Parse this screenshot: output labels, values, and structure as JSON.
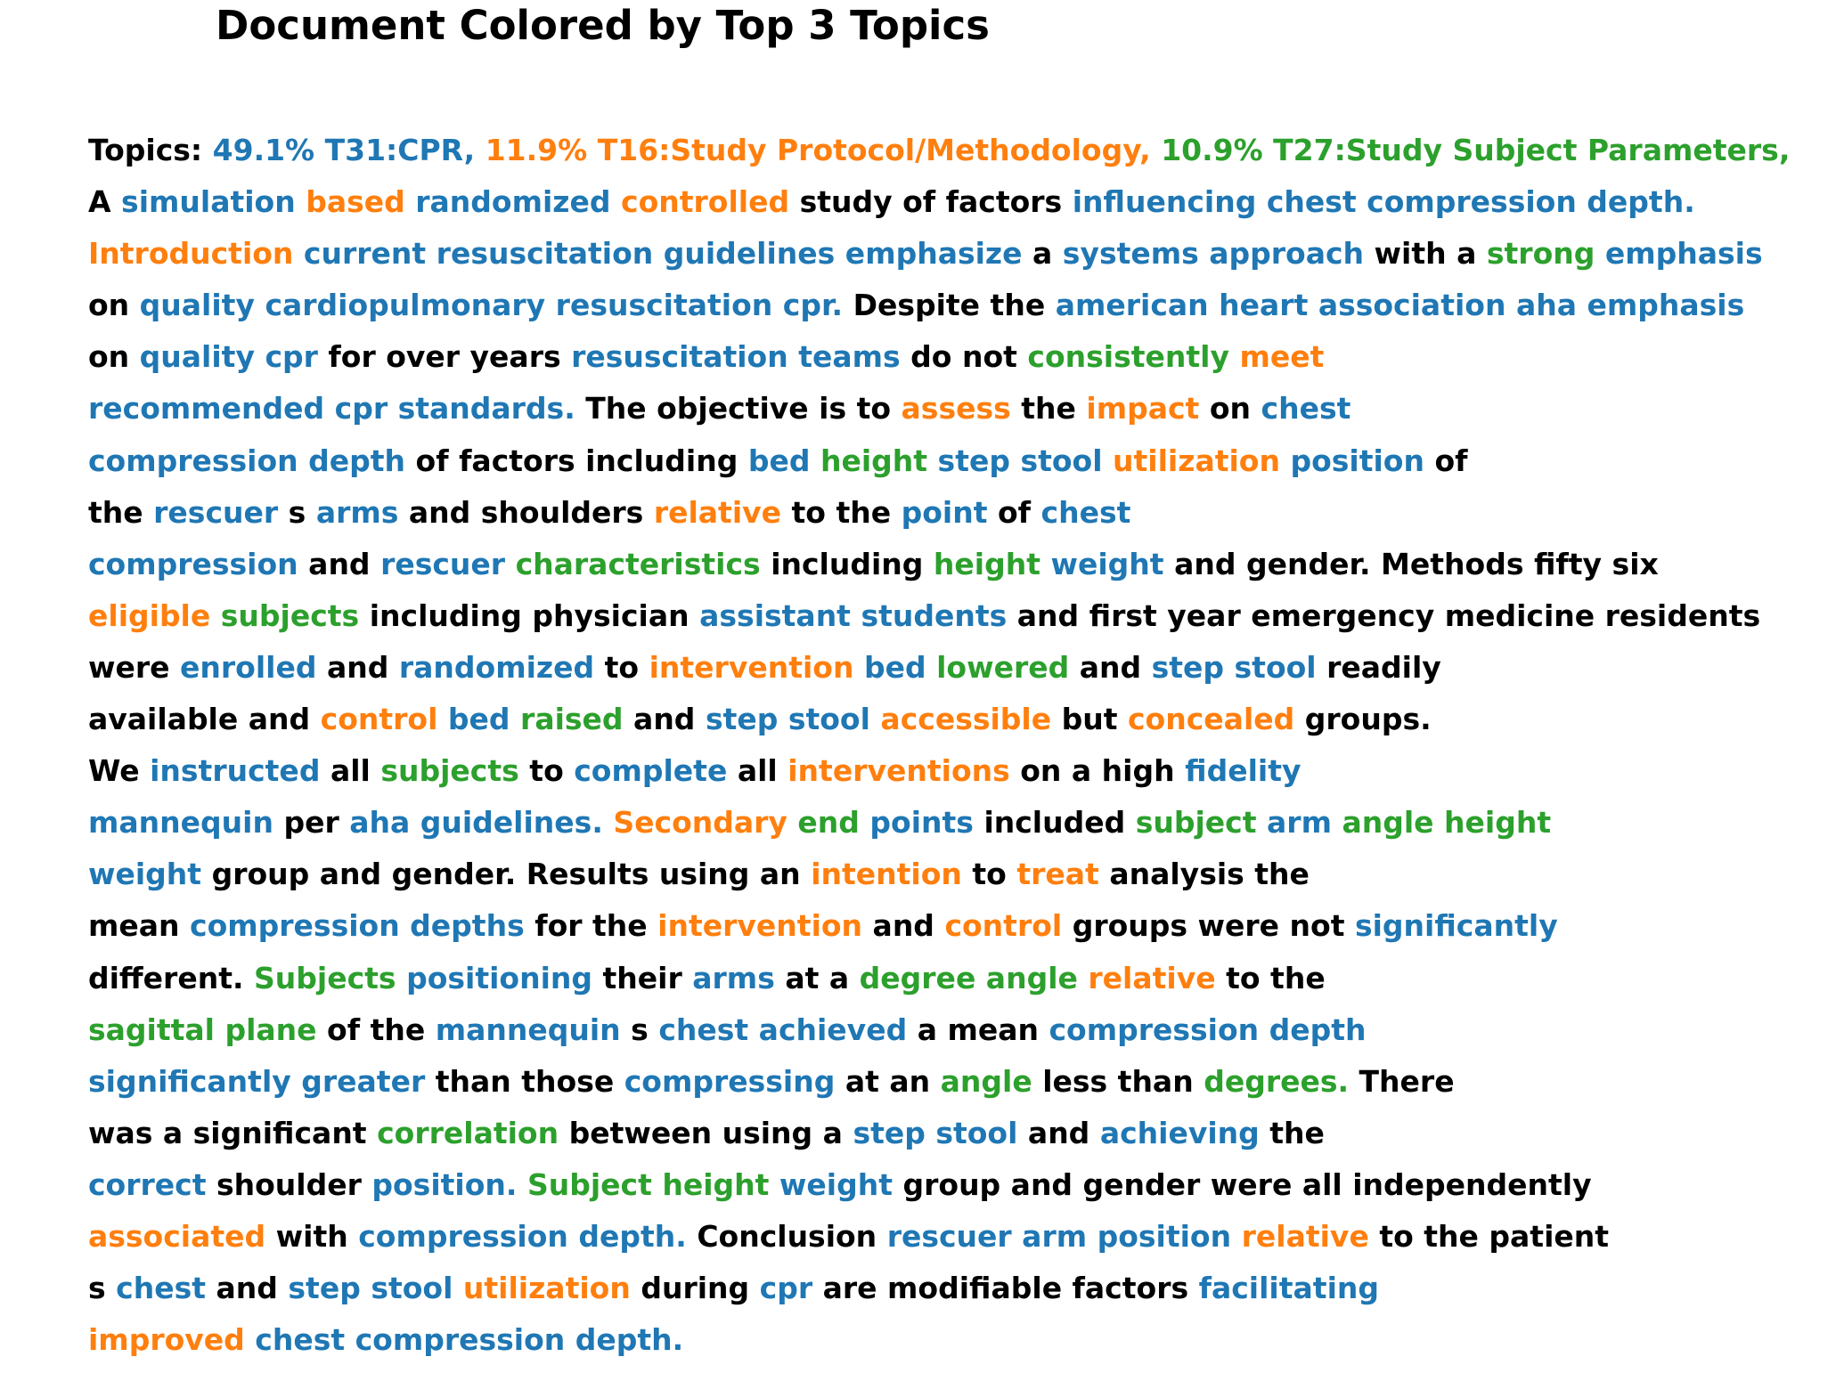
{
  "chart_data": {
    "type": "table",
    "title": "Document Colored by Top 3 Topics",
    "colors": {
      "T31": "#1f77b4",
      "T16": "#ff7f0e",
      "T27": "#2ca02c",
      "none": "#000000"
    },
    "topics": [
      {
        "id": "T31",
        "label": "49.1% T31:CPR,",
        "share_pct": 49.1
      },
      {
        "id": "T16",
        "label": "11.9% T16:Study Protocol/Methodology,",
        "share_pct": 11.9
      },
      {
        "id": "T27",
        "label": "10.9% T27:Study Subject Parameters,",
        "share_pct": 10.9
      }
    ],
    "lines": [
      [
        [
          "Topics:",
          ""
        ],
        [
          "49.1% T31:CPR,",
          "T31"
        ],
        [
          "11.9% T16:Study Protocol/Methodology,",
          "T16"
        ],
        [
          "10.9% T27:Study Subject Parameters,",
          "T27"
        ]
      ],
      [
        [
          "A",
          ""
        ],
        [
          "simulation",
          "T31"
        ],
        [
          "based",
          "T16"
        ],
        [
          "randomized",
          "T31"
        ],
        [
          "controlled",
          "T16"
        ],
        [
          "study of factors",
          ""
        ],
        [
          "influencing chest compression depth.",
          "T31"
        ]
      ],
      [
        [
          "Introduction",
          "T16"
        ],
        [
          "current resuscitation guidelines emphasize",
          "T31"
        ],
        [
          "a",
          ""
        ],
        [
          "systems approach",
          "T31"
        ],
        [
          "with a",
          ""
        ],
        [
          "strong",
          "T27"
        ],
        [
          "emphasis",
          "T31"
        ]
      ],
      [
        [
          "on",
          ""
        ],
        [
          "quality cardiopulmonary resuscitation cpr.",
          "T31"
        ],
        [
          "Despite the",
          ""
        ],
        [
          "american heart association aha emphasis",
          "T31"
        ]
      ],
      [
        [
          "on",
          ""
        ],
        [
          "quality cpr",
          "T31"
        ],
        [
          "for over years",
          ""
        ],
        [
          "resuscitation teams",
          "T31"
        ],
        [
          "do not",
          ""
        ],
        [
          "consistently",
          "T27"
        ],
        [
          "meet",
          "T16"
        ]
      ],
      [
        [
          "recommended cpr standards.",
          "T31"
        ],
        [
          "The objective is to",
          ""
        ],
        [
          "assess",
          "T16"
        ],
        [
          "the",
          ""
        ],
        [
          "impact",
          "T16"
        ],
        [
          "on",
          ""
        ],
        [
          "chest",
          "T31"
        ]
      ],
      [
        [
          "compression depth",
          "T31"
        ],
        [
          "of factors including",
          ""
        ],
        [
          "bed",
          "T31"
        ],
        [
          "height",
          "T27"
        ],
        [
          "step stool",
          "T31"
        ],
        [
          "utilization",
          "T16"
        ],
        [
          "position",
          "T31"
        ],
        [
          "of",
          ""
        ]
      ],
      [
        [
          "the",
          ""
        ],
        [
          "rescuer",
          "T31"
        ],
        [
          "s",
          ""
        ],
        [
          "arms",
          "T31"
        ],
        [
          "and shoulders",
          ""
        ],
        [
          "relative",
          "T16"
        ],
        [
          "to the",
          ""
        ],
        [
          "point",
          "T31"
        ],
        [
          "of",
          ""
        ],
        [
          "chest",
          "T31"
        ]
      ],
      [
        [
          "compression",
          "T31"
        ],
        [
          "and",
          ""
        ],
        [
          "rescuer",
          "T31"
        ],
        [
          "characteristics",
          "T27"
        ],
        [
          "including",
          ""
        ],
        [
          "height",
          "T27"
        ],
        [
          "weight",
          "T31"
        ],
        [
          "and gender. Methods fifty six",
          ""
        ]
      ],
      [
        [
          "eligible",
          "T16"
        ],
        [
          "subjects",
          "T27"
        ],
        [
          "including physician",
          ""
        ],
        [
          "assistant students",
          "T31"
        ],
        [
          "and first year emergency medicine residents",
          ""
        ]
      ],
      [
        [
          "were",
          ""
        ],
        [
          "enrolled",
          "T31"
        ],
        [
          "and",
          ""
        ],
        [
          "randomized",
          "T31"
        ],
        [
          "to",
          ""
        ],
        [
          "intervention",
          "T16"
        ],
        [
          "bed",
          "T31"
        ],
        [
          "lowered",
          "T27"
        ],
        [
          "and",
          ""
        ],
        [
          "step stool",
          "T31"
        ],
        [
          "readily",
          ""
        ]
      ],
      [
        [
          "available and",
          ""
        ],
        [
          "control",
          "T16"
        ],
        [
          "bed",
          "T31"
        ],
        [
          "raised",
          "T27"
        ],
        [
          "and",
          ""
        ],
        [
          "step stool",
          "T31"
        ],
        [
          "accessible",
          "T16"
        ],
        [
          "but",
          ""
        ],
        [
          "concealed",
          "T16"
        ],
        [
          "groups.",
          ""
        ]
      ],
      [
        [
          "We",
          ""
        ],
        [
          "instructed",
          "T31"
        ],
        [
          "all",
          ""
        ],
        [
          "subjects",
          "T27"
        ],
        [
          "to",
          ""
        ],
        [
          "complete",
          "T31"
        ],
        [
          "all",
          ""
        ],
        [
          "interventions",
          "T16"
        ],
        [
          "on a high",
          ""
        ],
        [
          "fidelity",
          "T31"
        ]
      ],
      [
        [
          "mannequin",
          "T31"
        ],
        [
          "per",
          ""
        ],
        [
          "aha guidelines.",
          "T31"
        ],
        [
          "Secondary",
          "T16"
        ],
        [
          "end",
          "T27"
        ],
        [
          "points",
          "T31"
        ],
        [
          "included",
          ""
        ],
        [
          "subject",
          "T27"
        ],
        [
          "arm",
          "T31"
        ],
        [
          "angle height",
          "T27"
        ]
      ],
      [
        [
          "weight",
          "T31"
        ],
        [
          "group and gender. Results using an",
          ""
        ],
        [
          "intention",
          "T16"
        ],
        [
          "to",
          ""
        ],
        [
          "treat",
          "T16"
        ],
        [
          "analysis the",
          ""
        ]
      ],
      [
        [
          "mean",
          ""
        ],
        [
          "compression depths",
          "T31"
        ],
        [
          "for the",
          ""
        ],
        [
          "intervention",
          "T16"
        ],
        [
          "and",
          ""
        ],
        [
          "control",
          "T16"
        ],
        [
          "groups were not",
          ""
        ],
        [
          "significantly",
          "T31"
        ]
      ],
      [
        [
          "different.",
          ""
        ],
        [
          "Subjects",
          "T27"
        ],
        [
          "positioning",
          "T31"
        ],
        [
          "their",
          ""
        ],
        [
          "arms",
          "T31"
        ],
        [
          "at a",
          ""
        ],
        [
          "degree angle",
          "T27"
        ],
        [
          "relative",
          "T16"
        ],
        [
          "to the",
          ""
        ]
      ],
      [
        [
          "sagittal plane",
          "T27"
        ],
        [
          "of the",
          ""
        ],
        [
          "mannequin",
          "T31"
        ],
        [
          "s",
          ""
        ],
        [
          "chest achieved",
          "T31"
        ],
        [
          "a mean",
          ""
        ],
        [
          "compression depth",
          "T31"
        ]
      ],
      [
        [
          "significantly greater",
          "T31"
        ],
        [
          "than those",
          ""
        ],
        [
          "compressing",
          "T31"
        ],
        [
          "at an",
          ""
        ],
        [
          "angle",
          "T27"
        ],
        [
          "less than",
          ""
        ],
        [
          "degrees.",
          "T27"
        ],
        [
          "There",
          ""
        ]
      ],
      [
        [
          "was a significant",
          ""
        ],
        [
          "correlation",
          "T27"
        ],
        [
          "between using a",
          ""
        ],
        [
          "step stool",
          "T31"
        ],
        [
          "and",
          ""
        ],
        [
          "achieving",
          "T31"
        ],
        [
          "the",
          ""
        ]
      ],
      [
        [
          "correct",
          "T31"
        ],
        [
          "shoulder",
          ""
        ],
        [
          "position.",
          "T31"
        ],
        [
          "Subject height",
          "T27"
        ],
        [
          "weight",
          "T31"
        ],
        [
          "group and gender were all independently",
          ""
        ]
      ],
      [
        [
          "associated",
          "T16"
        ],
        [
          "with",
          ""
        ],
        [
          "compression depth.",
          "T31"
        ],
        [
          "Conclusion",
          ""
        ],
        [
          "rescuer arm position",
          "T31"
        ],
        [
          "relative",
          "T16"
        ],
        [
          "to the patient",
          ""
        ]
      ],
      [
        [
          "s",
          ""
        ],
        [
          "chest",
          "T31"
        ],
        [
          "and",
          ""
        ],
        [
          "step stool",
          "T31"
        ],
        [
          "utilization",
          "T16"
        ],
        [
          "during",
          ""
        ],
        [
          "cpr",
          "T31"
        ],
        [
          "are modifiable factors",
          ""
        ],
        [
          "facilitating",
          "T31"
        ]
      ],
      [
        [
          "improved",
          "T16"
        ],
        [
          "chest compression depth.",
          "T31"
        ]
      ]
    ]
  }
}
